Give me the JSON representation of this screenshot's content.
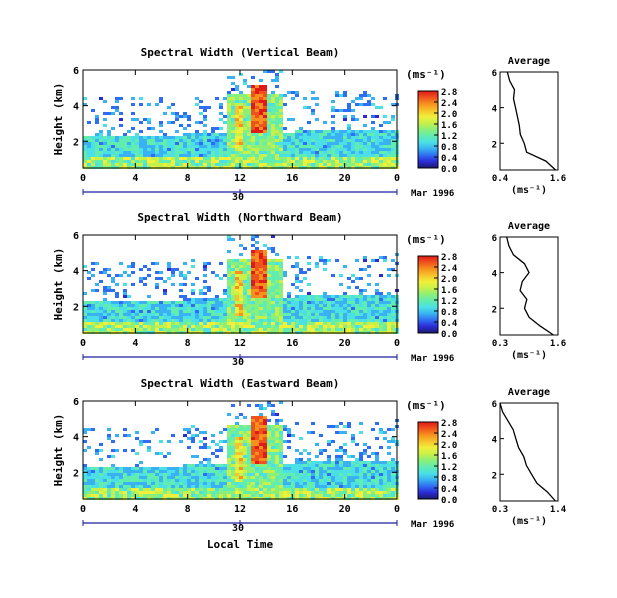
{
  "colors": {
    "background": "#ffffff",
    "ink": "#000000",
    "colormap": [
      "#1a1a6e",
      "#2b2bd6",
      "#2f6df2",
      "#39b1f2",
      "#4be0e6",
      "#61ecb0",
      "#8af07a",
      "#c8f04a",
      "#f0ef3a",
      "#f8c22c",
      "#f7901f",
      "#f0521c",
      "#e01a18"
    ]
  },
  "bottom_axis_title": "Local Time",
  "chart_data": [
    {
      "type": "heatmap",
      "title": "Spectral Width (Vertical Beam)",
      "ylabel": "Height (km)",
      "xlabel": "Local Time",
      "x_ticks": [
        "0",
        "4",
        "8",
        "12",
        "16",
        "20",
        "0"
      ],
      "xlim": [
        0,
        24
      ],
      "y_ticks": [
        "2",
        "4",
        "6"
      ],
      "ylim": [
        0.5,
        6
      ],
      "date_label": "30",
      "date_suffix": "Mar 1996",
      "colorbar": {
        "unit": "(ms⁻¹)",
        "range": [
          0.0,
          2.8
        ],
        "ticks": [
          "2.8",
          "2.4",
          "2.0",
          "1.6",
          "1.2",
          "0.8",
          "0.4",
          "0.0"
        ]
      },
      "profile": {
        "title": "Average",
        "xlabel": "(ms⁻¹)",
        "x_ticks": [
          "0.4",
          "1.6"
        ],
        "xlim": [
          0.4,
          1.6
        ],
        "y_ticks": [
          "2",
          "4",
          "6"
        ],
        "ylim": [
          0.5,
          6
        ],
        "heights": [
          0.5,
          1.0,
          1.5,
          2.0,
          2.5,
          3.0,
          3.5,
          4.0,
          4.5,
          5.0,
          5.5,
          6.0
        ],
        "values": [
          1.55,
          1.35,
          0.95,
          0.9,
          0.82,
          0.8,
          0.76,
          0.72,
          0.68,
          0.7,
          0.6,
          0.55
        ]
      }
    },
    {
      "type": "heatmap",
      "title": "Spectral Width (Northward Beam)",
      "ylabel": "Height (km)",
      "xlabel": "Local Time",
      "x_ticks": [
        "0",
        "4",
        "8",
        "12",
        "16",
        "20",
        "0"
      ],
      "xlim": [
        0,
        24
      ],
      "y_ticks": [
        "2",
        "4",
        "6"
      ],
      "ylim": [
        0.5,
        6
      ],
      "date_label": "30",
      "date_suffix": "Mar 1996",
      "colorbar": {
        "unit": "(ms⁻¹)",
        "range": [
          0.0,
          2.8
        ],
        "ticks": [
          "2.8",
          "2.4",
          "2.0",
          "1.6",
          "1.2",
          "0.8",
          "0.4",
          "0.0"
        ]
      },
      "profile": {
        "title": "Average",
        "xlabel": "(ms⁻¹)",
        "x_ticks": [
          "0.3",
          "1.6"
        ],
        "xlim": [
          0.3,
          1.6
        ],
        "y_ticks": [
          "2",
          "4",
          "6"
        ],
        "ylim": [
          0.5,
          6
        ],
        "heights": [
          0.5,
          1.0,
          1.5,
          2.0,
          2.5,
          3.0,
          3.5,
          4.0,
          4.5,
          5.0,
          5.5,
          6.0
        ],
        "values": [
          1.5,
          1.2,
          0.95,
          0.85,
          0.9,
          0.75,
          0.8,
          0.95,
          0.85,
          0.6,
          0.5,
          0.45
        ]
      }
    },
    {
      "type": "heatmap",
      "title": "Spectral Width (Eastward Beam)",
      "ylabel": "Height (km)",
      "xlabel": "Local Time",
      "x_ticks": [
        "0",
        "4",
        "8",
        "12",
        "16",
        "20",
        "0"
      ],
      "xlim": [
        0,
        24
      ],
      "y_ticks": [
        "2",
        "4",
        "6"
      ],
      "ylim": [
        0.5,
        6
      ],
      "date_label": "30",
      "date_suffix": "Mar 1996",
      "colorbar": {
        "unit": "(ms⁻¹)",
        "range": [
          0.0,
          2.8
        ],
        "ticks": [
          "2.8",
          "2.4",
          "2.0",
          "1.6",
          "1.2",
          "0.8",
          "0.4",
          "0.0"
        ]
      },
      "profile": {
        "title": "Average",
        "xlabel": "(ms⁻¹)",
        "x_ticks": [
          "0.3",
          "1.4"
        ],
        "xlim": [
          0.3,
          1.4
        ],
        "y_ticks": [
          "2",
          "4",
          "6"
        ],
        "ylim": [
          0.5,
          6
        ],
        "heights": [
          0.5,
          1.0,
          1.5,
          2.0,
          2.5,
          3.0,
          3.5,
          4.0,
          4.5,
          5.0,
          5.5,
          6.0
        ],
        "values": [
          1.35,
          1.2,
          1.0,
          0.9,
          0.8,
          0.75,
          0.65,
          0.6,
          0.55,
          0.45,
          0.35,
          0.3
        ]
      }
    }
  ]
}
